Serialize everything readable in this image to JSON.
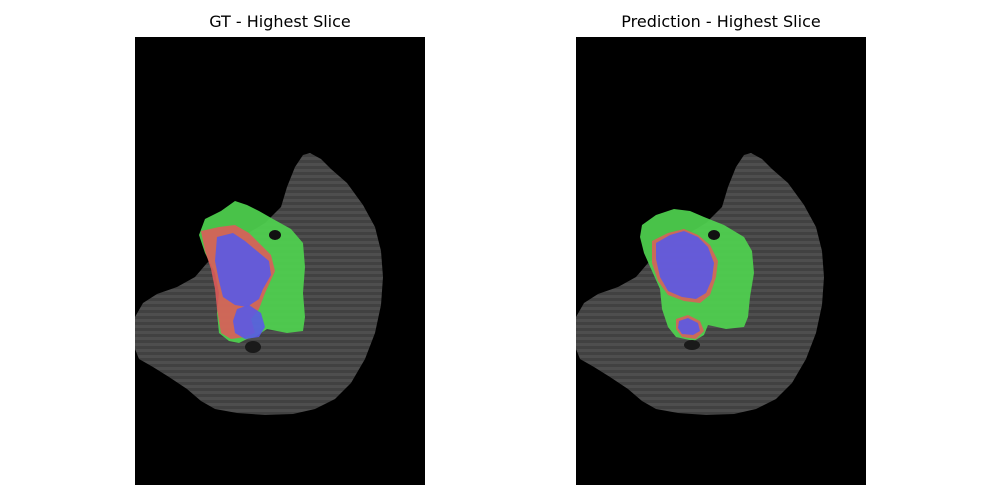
{
  "panels": [
    {
      "title": "GT - Highest Slice"
    },
    {
      "title": "Prediction - Highest Slice"
    }
  ],
  "colors": {
    "background": "#000000",
    "brain_tissue": "#4a4a4a",
    "edema": "#4fd24f",
    "enhancing_tumor": "#e05a5a",
    "necrotic_core": "#5a5ae6"
  }
}
